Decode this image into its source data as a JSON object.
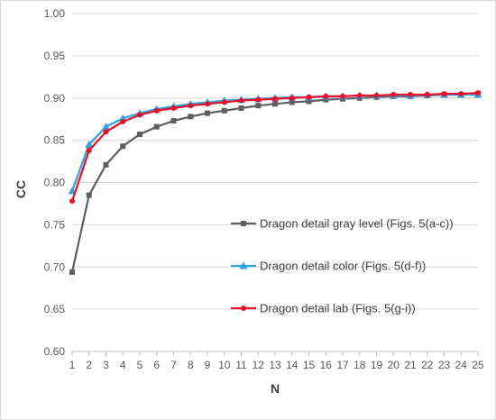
{
  "chart_data": {
    "type": "line",
    "title": "",
    "xlabel": "N",
    "ylabel": "CC",
    "x": [
      1,
      2,
      3,
      4,
      5,
      6,
      7,
      8,
      9,
      10,
      11,
      12,
      13,
      14,
      15,
      16,
      17,
      18,
      19,
      20,
      21,
      22,
      23,
      24,
      25
    ],
    "xlim": [
      1,
      25
    ],
    "ylim": [
      0.6,
      1.0
    ],
    "yticks": [
      "0.60",
      "0.65",
      "0.70",
      "0.75",
      "0.80",
      "0.85",
      "0.90",
      "0.95",
      "1.00"
    ],
    "grid": "horizontal",
    "legend_position": "right-center",
    "series": [
      {
        "name": "Dragon detail gray level (Figs. 5(a-c))",
        "color": "#5f5f5f",
        "marker": "square",
        "values": [
          0.694,
          0.785,
          0.821,
          0.843,
          0.857,
          0.866,
          0.873,
          0.878,
          0.882,
          0.885,
          0.888,
          0.891,
          0.893,
          0.895,
          0.896,
          0.898,
          0.899,
          0.9,
          0.901,
          0.902,
          0.902,
          0.903,
          0.904,
          0.904,
          0.905
        ]
      },
      {
        "name": "Dragon detail color (Figs. 5(d-f))",
        "color": "#33a3dc",
        "marker": "triangle",
        "values": [
          0.79,
          0.845,
          0.866,
          0.876,
          0.882,
          0.887,
          0.89,
          0.893,
          0.895,
          0.897,
          0.898,
          0.899,
          0.9,
          0.901,
          0.901,
          0.902,
          0.902,
          0.903,
          0.903,
          0.903,
          0.903,
          0.904,
          0.904,
          0.904,
          0.904
        ]
      },
      {
        "name": "Dragon detail lab (Figs. 5(g-i))",
        "color": "#e8102a",
        "marker": "circle",
        "values": [
          0.778,
          0.838,
          0.86,
          0.872,
          0.88,
          0.885,
          0.888,
          0.891,
          0.893,
          0.895,
          0.897,
          0.898,
          0.899,
          0.9,
          0.901,
          0.902,
          0.902,
          0.903,
          0.903,
          0.904,
          0.904,
          0.904,
          0.905,
          0.905,
          0.906
        ]
      }
    ]
  }
}
